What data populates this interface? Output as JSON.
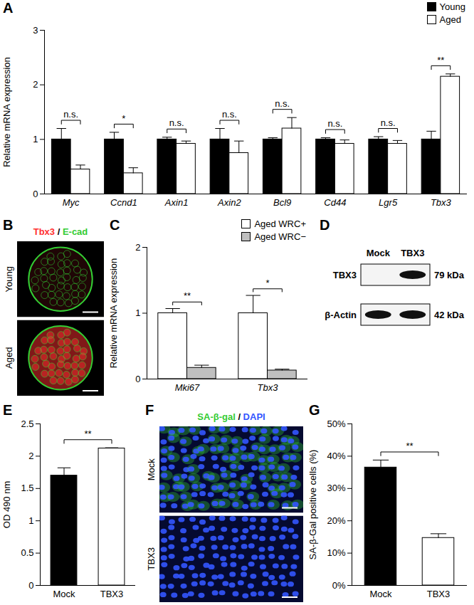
{
  "chart_data": [
    {
      "panel": "A",
      "type": "bar",
      "y_label": "Relative mRNA expression",
      "categories": [
        "Myc",
        "Ccnd1",
        "Axin1",
        "Axin2",
        "Bcl9",
        "Cd44",
        "Lgr5",
        "Tbx3"
      ],
      "series": [
        {
          "name": "Young",
          "color": "#000000",
          "values": [
            1,
            1,
            1,
            1,
            1,
            1,
            1,
            1
          ],
          "errors": [
            0.2,
            0.13,
            0.04,
            0.2,
            0.03,
            0.03,
            0.05,
            0.15
          ]
        },
        {
          "name": "Aged",
          "color": "#ffffff",
          "values": [
            0.45,
            0.38,
            0.92,
            0.75,
            1.2,
            0.92,
            0.92,
            2.15
          ],
          "errors": [
            0.08,
            0.1,
            0.05,
            0.22,
            0.2,
            0.07,
            0.06,
            0.05
          ]
        }
      ],
      "significance": [
        "n.s.",
        "*",
        "n.s.",
        "n.s.",
        "n.s.",
        "n.s.",
        "n.s.",
        "**"
      ],
      "ylim": [
        0,
        3
      ],
      "yticks": [
        0,
        1,
        2,
        3
      ],
      "legend": "upper right"
    },
    {
      "panel": "B",
      "type": "image",
      "channels": [
        {
          "name": "Tbx3",
          "color": "#ff3030"
        },
        {
          "name": "E-cad",
          "color": "#33cc33"
        }
      ],
      "separator": "/",
      "rows": [
        "Young",
        "Aged"
      ]
    },
    {
      "panel": "C",
      "type": "bar",
      "y_label": "Relative mRNA expression",
      "categories": [
        "Mki67",
        "Tbx3"
      ],
      "series": [
        {
          "name": "Aged WRC+",
          "color": "#ffffff",
          "values": [
            1,
            1
          ],
          "errors": [
            0.07,
            0.27
          ]
        },
        {
          "name": "Aged WRC−",
          "color": "#bfbfbf",
          "values": [
            0.17,
            0.13
          ],
          "errors": [
            0.04,
            0.02
          ]
        }
      ],
      "significance": [
        "**",
        "*"
      ],
      "ylim": [
        0,
        2
      ],
      "yticks": [
        0,
        1,
        2
      ],
      "legend": "upper right"
    },
    {
      "panel": "D",
      "type": "blot",
      "lanes": [
        "Mock",
        "TBX3"
      ],
      "bands": [
        {
          "name": "TBX3",
          "size": "79 kDa",
          "intensity": [
            0,
            1
          ]
        },
        {
          "name": "β-Actin",
          "size": "42 kDa",
          "intensity": [
            1,
            1
          ]
        }
      ]
    },
    {
      "panel": "E",
      "type": "bar",
      "y_label": "OD 490 nm",
      "categories": [
        "Mock",
        "TBX3"
      ],
      "values": [
        1.7,
        2.12
      ],
      "errors": [
        0.12,
        0.01
      ],
      "colors": [
        "#000000",
        "#ffffff"
      ],
      "significance": "**",
      "ylim": [
        0,
        2.5
      ],
      "yticks": [
        0,
        0.5,
        1,
        1.5,
        2,
        2.5
      ]
    },
    {
      "panel": "F",
      "type": "image",
      "channels": [
        {
          "name": "SA-β-gal",
          "color": "#33cc33"
        },
        {
          "name": "DAPI",
          "color": "#3355ff"
        }
      ],
      "separator": "/",
      "rows": [
        "Mock",
        "TBX3"
      ]
    },
    {
      "panel": "G",
      "type": "bar",
      "y_label": "SA-β-Gal positive cells (%)",
      "categories": [
        "Mock",
        "TBX3"
      ],
      "values": [
        36.5,
        14.7
      ],
      "errors": [
        2.3,
        1.3
      ],
      "colors": [
        "#000000",
        "#ffffff"
      ],
      "significance": "**",
      "ylim": [
        0,
        50
      ],
      "yticks": [
        {
          "value": 0,
          "label": "0%"
        },
        {
          "value": 10,
          "label": "10%"
        },
        {
          "value": 20,
          "label": "20%"
        },
        {
          "value": 30,
          "label": "30%"
        },
        {
          "value": 40,
          "label": "40%"
        },
        {
          "value": 50,
          "label": "50%"
        }
      ]
    }
  ]
}
